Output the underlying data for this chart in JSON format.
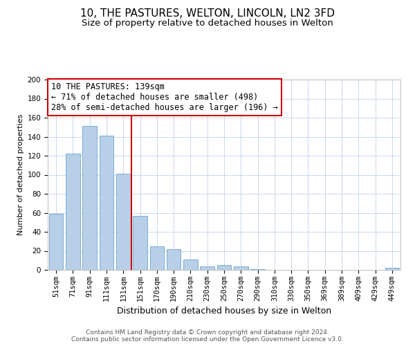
{
  "title": "10, THE PASTURES, WELTON, LINCOLN, LN2 3FD",
  "subtitle": "Size of property relative to detached houses in Welton",
  "xlabel": "Distribution of detached houses by size in Welton",
  "ylabel": "Number of detached properties",
  "footer_line1": "Contains HM Land Registry data © Crown copyright and database right 2024.",
  "footer_line2": "Contains public sector information licensed under the Open Government Licence v3.0.",
  "bar_labels": [
    "51sqm",
    "71sqm",
    "91sqm",
    "111sqm",
    "131sqm",
    "151sqm",
    "170sqm",
    "190sqm",
    "210sqm",
    "230sqm",
    "250sqm",
    "270sqm",
    "290sqm",
    "310sqm",
    "330sqm",
    "350sqm",
    "369sqm",
    "389sqm",
    "409sqm",
    "429sqm",
    "449sqm"
  ],
  "bar_values": [
    59,
    122,
    151,
    141,
    101,
    57,
    25,
    22,
    11,
    4,
    5,
    4,
    1,
    0,
    0,
    0,
    0,
    0,
    0,
    0,
    2
  ],
  "bar_color": "#b8cfe8",
  "bar_edge_color": "#7aadd4",
  "annotation_title": "10 THE PASTURES: 139sqm",
  "annotation_line1": "← 71% of detached houses are smaller (498)",
  "annotation_line2": "28% of semi-detached houses are larger (196) →",
  "property_line_x": 4.5,
  "ylim": [
    0,
    200
  ],
  "yticks": [
    0,
    20,
    40,
    60,
    80,
    100,
    120,
    140,
    160,
    180,
    200
  ],
  "background_color": "#ffffff",
  "grid_color": "#c8d8ea",
  "annotation_box_color": "#ffffff",
  "annotation_box_edge": "#cc0000",
  "property_line_color": "#cc0000",
  "title_fontsize": 11,
  "subtitle_fontsize": 9.5,
  "xlabel_fontsize": 9,
  "ylabel_fontsize": 8,
  "tick_fontsize": 7.5,
  "annotation_fontsize": 8.5,
  "footer_fontsize": 6.5
}
